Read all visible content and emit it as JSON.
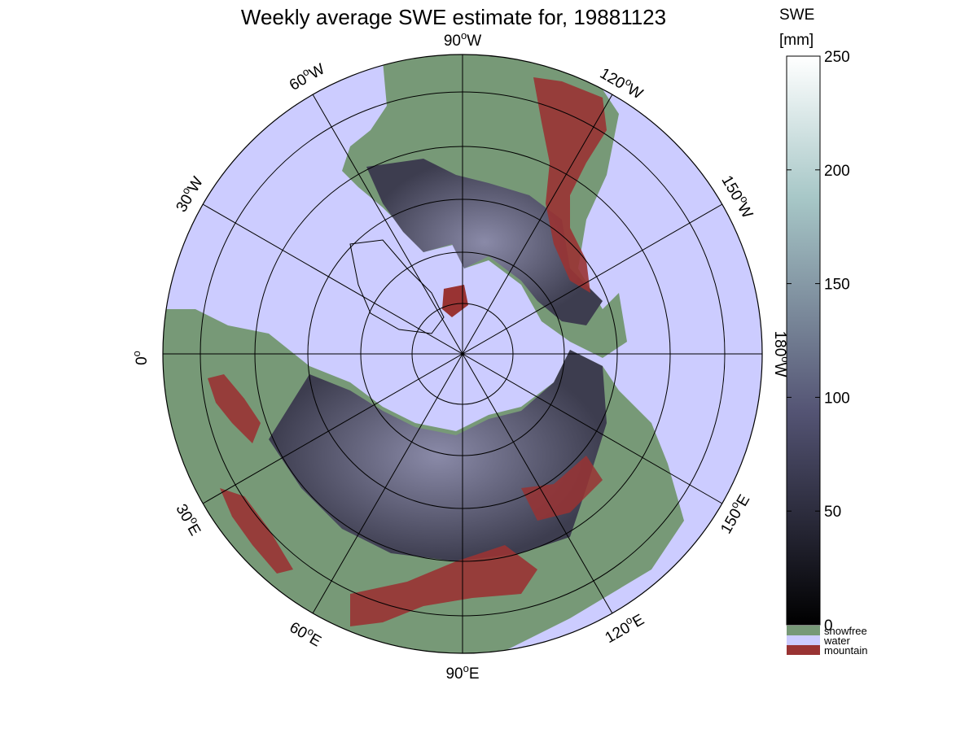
{
  "title": "Weekly average SWE estimate for, 19881123",
  "colorbar": {
    "label_line1": "SWE",
    "label_line2": "[mm]",
    "ticks": [
      {
        "value": 0,
        "label": "0"
      },
      {
        "value": 50,
        "label": "50"
      },
      {
        "value": 100,
        "label": "100"
      },
      {
        "value": 150,
        "label": "150"
      },
      {
        "value": 200,
        "label": "200"
      },
      {
        "value": 250,
        "label": "250"
      }
    ],
    "range": [
      0,
      250
    ],
    "colormap": "bone",
    "categories": [
      {
        "label": "snowfree",
        "color": "#779977"
      },
      {
        "label": "water",
        "color": "#ccccff"
      },
      {
        "label": "mountain",
        "color": "#993333"
      }
    ]
  },
  "map": {
    "projection": "north polar stereographic",
    "ocean_color": "#ccccff",
    "land_color": "#779977",
    "mountain_color": "#993333",
    "snow_color": "#4d4d63",
    "longitude_labels": [
      {
        "id": "lon-90w",
        "deg": "90",
        "hemi": "W"
      },
      {
        "id": "lon-120w",
        "deg": "120",
        "hemi": "W"
      },
      {
        "id": "lon-150w",
        "deg": "150",
        "hemi": "W"
      },
      {
        "id": "lon-180w",
        "deg": "180",
        "hemi": "W"
      },
      {
        "id": "lon-150e",
        "deg": "150",
        "hemi": "E"
      },
      {
        "id": "lon-120e",
        "deg": "120",
        "hemi": "E"
      },
      {
        "id": "lon-90e",
        "deg": "90",
        "hemi": "E"
      },
      {
        "id": "lon-60e",
        "deg": "60",
        "hemi": "E"
      },
      {
        "id": "lon-30e",
        "deg": "30",
        "hemi": "E"
      },
      {
        "id": "lon-0",
        "deg": "0",
        "hemi": ""
      },
      {
        "id": "lon-30w",
        "deg": "30",
        "hemi": "W"
      },
      {
        "id": "lon-60w",
        "deg": "60",
        "hemi": "W"
      }
    ]
  }
}
